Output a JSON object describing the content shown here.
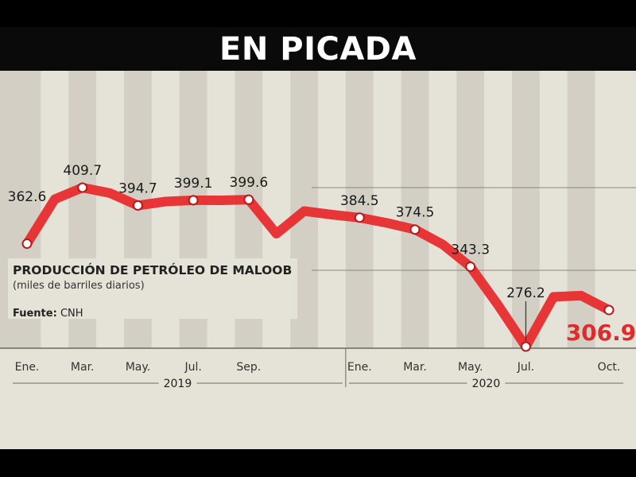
{
  "title": "EN PICADA",
  "chart_data": {
    "type": "line",
    "title": "PRODUCCIÓN DE PETRÓLEO DE MALOOB",
    "subtitle": "(miles de barriles diarios)",
    "source_label": "Fuente:",
    "source_value": "CNH",
    "x": [
      "Ene. 2019",
      "Feb. 2019",
      "Mar. 2019",
      "Abr. 2019",
      "May. 2019",
      "Jun. 2019",
      "Jul. 2019",
      "Ago. 2019",
      "Sep. 2019",
      "Oct. 2019",
      "Nov. 2019",
      "Dic. 2019",
      "Ene. 2020",
      "Feb. 2020",
      "Mar. 2020",
      "Abr. 2020",
      "May. 2020",
      "Jun. 2020",
      "Jul. 2020",
      "Ago. 2020",
      "Sep. 2020",
      "Oct. 2020"
    ],
    "y": [
      362.6,
      400,
      409.7,
      405,
      394.7,
      398,
      399.1,
      399,
      399.6,
      371,
      390,
      387,
      384.5,
      380,
      374.5,
      362,
      343.3,
      311,
      276.2,
      318,
      319,
      306.9
    ],
    "markers": [
      0,
      2,
      4,
      6,
      8,
      12,
      14,
      16,
      18,
      21
    ],
    "labels": {
      "0": "362.6",
      "2": "409.7",
      "4": "394.7",
      "6": "399.1",
      "8": "399.6",
      "12": "384.5",
      "14": "374.5",
      "16": "343.3",
      "18": "276.2",
      "21": "306.9"
    },
    "highlight_index": 21,
    "tick_labels": {
      "0": "Ene.",
      "2": "Mar.",
      "4": "May.",
      "6": "Jul.",
      "8": "Sep.",
      "12": "Ene.",
      "14": "Mar.",
      "16": "May.",
      "18": "Jul.",
      "21": "Oct."
    },
    "years": [
      "2019",
      "2020"
    ],
    "colors": {
      "line": "#e8292b",
      "highlight_text": "#e12a2a",
      "stripe_dark": "#d3cfc4",
      "stripe_light": "#e5e2d8",
      "header_bg": "#0a0a0a"
    }
  }
}
